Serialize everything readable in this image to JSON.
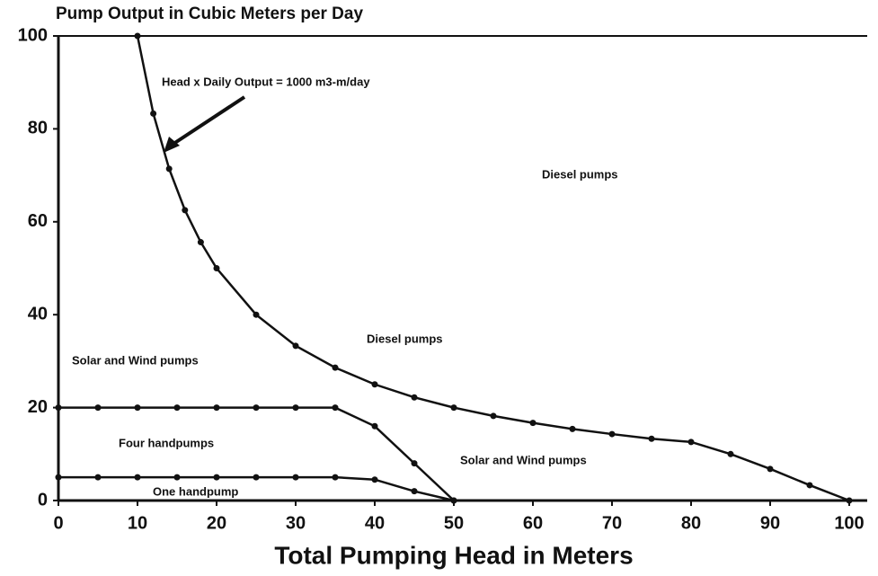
{
  "chart_data": {
    "type": "line",
    "title": "Pump Output in Cubic Meters per Day",
    "x_label": "Total Pumping Head in Meters",
    "xlim": [
      0,
      100
    ],
    "ylim": [
      0,
      100
    ],
    "xticks": [
      0,
      10,
      20,
      30,
      40,
      50,
      60,
      70,
      80,
      90,
      100
    ],
    "yticks": [
      0,
      20,
      40,
      60,
      80,
      100
    ],
    "series": [
      {
        "color": "#111111",
        "x": [
          10,
          12,
          14,
          16,
          18,
          20,
          25,
          30,
          35,
          40,
          45,
          50,
          55,
          60,
          65,
          70,
          75,
          80,
          85,
          90,
          95,
          100
        ],
        "values": [
          100,
          83.3,
          71.4,
          62.5,
          55.6,
          50,
          40,
          33.3,
          28.6,
          25,
          22.2,
          20,
          18.2,
          16.7,
          15.4,
          14.3,
          13.3,
          12.6,
          10,
          6.8,
          3.3,
          0
        ]
      },
      {
        "color": "#111111",
        "x": [
          0,
          5,
          10,
          15,
          20,
          25,
          30,
          35,
          40,
          45,
          50
        ],
        "values": [
          20,
          20,
          20,
          20,
          20,
          20,
          20,
          20,
          16,
          8,
          0
        ]
      },
      {
        "color": "#111111",
        "x": [
          0,
          5,
          10,
          15,
          20,
          25,
          30,
          35,
          40,
          45,
          50
        ],
        "values": [
          5,
          5,
          5,
          5,
          5,
          5,
          5,
          5,
          4.5,
          2,
          0
        ]
      }
    ],
    "annotations": [
      "Head x Daily Output = 1000 m3-m/day",
      "Diesel pumps",
      "Diesel pumps",
      "Solar and Wind pumps",
      "Four handpumps",
      "Solar and Wind pumps",
      "One handpump"
    ]
  }
}
